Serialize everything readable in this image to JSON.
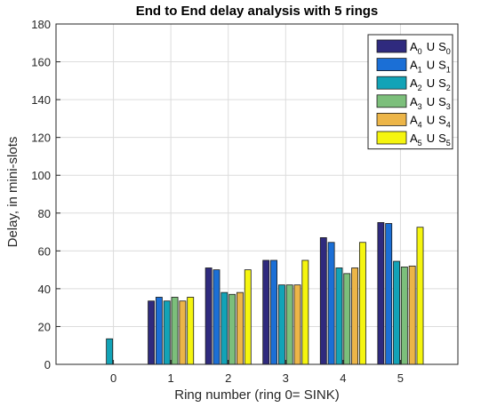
{
  "chart_data": {
    "type": "bar",
    "title": "End to End delay analysis with  5 rings",
    "xlabel": "Ring number (ring 0= SINK)",
    "ylabel": "Delay, in mini-slots",
    "categories": [
      "0",
      "1",
      "2",
      "3",
      "4",
      "5"
    ],
    "ylim": [
      0,
      180
    ],
    "yticks": [
      0,
      20,
      40,
      60,
      80,
      100,
      120,
      140,
      160,
      180
    ],
    "grid": true,
    "legend_position": "top-right",
    "series": [
      {
        "name": "A0 U S0",
        "legend": {
          "a": "A",
          "asub": "0",
          "u": "U",
          "s": "S",
          "ssub": "0"
        },
        "color": "#2f2a7e",
        "values": [
          0,
          33.5,
          51,
          55,
          67,
          75
        ]
      },
      {
        "name": "A1 U S1",
        "legend": {
          "a": "A",
          "asub": "1",
          "u": "U",
          "s": "S",
          "ssub": "1"
        },
        "color": "#1b6fd6",
        "values": [
          0,
          35.5,
          50,
          55,
          64.5,
          74.5
        ]
      },
      {
        "name": "A2 U S2",
        "legend": {
          "a": "A",
          "asub": "2",
          "u": "U",
          "s": "S",
          "ssub": "2"
        },
        "color": "#12a3b7",
        "values": [
          13.5,
          33.5,
          38,
          42,
          51,
          54.5
        ]
      },
      {
        "name": "A3 U S3",
        "legend": {
          "a": "A",
          "asub": "3",
          "u": "U",
          "s": "S",
          "ssub": "3"
        },
        "color": "#7cbf7b",
        "values": [
          0,
          35.5,
          37,
          42,
          48,
          51.5
        ]
      },
      {
        "name": "A4 U S4",
        "legend": {
          "a": "A",
          "asub": "4",
          "u": "U",
          "s": "S",
          "ssub": "4"
        },
        "color": "#ecb548",
        "values": [
          0,
          33.5,
          38,
          42,
          51,
          52
        ]
      },
      {
        "name": "A5 U S5",
        "legend": {
          "a": "A",
          "asub": "5",
          "u": "U",
          "s": "S",
          "ssub": "5"
        },
        "color": "#f5f50f",
        "values": [
          0,
          35.5,
          50,
          55,
          64.5,
          72.5
        ]
      }
    ]
  }
}
